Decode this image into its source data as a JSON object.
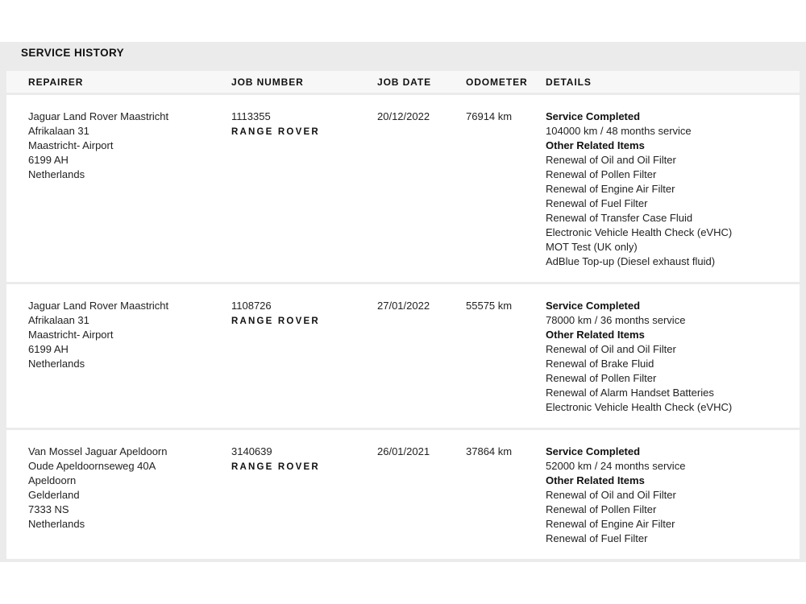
{
  "section_title": "SERVICE HISTORY",
  "columns": [
    "REPAIRER",
    "JOB NUMBER",
    "JOB DATE",
    "ODOMETER",
    "DETAILS"
  ],
  "rows": [
    {
      "repairer": [
        "Jaguar Land Rover Maastricht",
        "Afrikalaan 31",
        "Maastricht- Airport",
        "6199 AH",
        "Netherlands"
      ],
      "job_number": "1113355",
      "brand": "RANGE ROVER",
      "job_date": "20/12/2022",
      "odometer": "76914 km",
      "service_heading": "Service Completed",
      "service": "104000 km / 48 months service",
      "other_heading": "Other Related Items",
      "items": [
        "Renewal of Oil and Oil Filter",
        "Renewal of Pollen Filter",
        "Renewal of Engine Air Filter",
        "Renewal of Fuel Filter",
        "Renewal of Transfer Case Fluid",
        "Electronic Vehicle Health Check (eVHC)",
        "MOT Test (UK only)",
        "AdBlue Top-up (Diesel exhaust fluid)"
      ]
    },
    {
      "repairer": [
        "Jaguar Land Rover Maastricht",
        "Afrikalaan 31",
        "Maastricht- Airport",
        "6199 AH",
        "Netherlands"
      ],
      "job_number": "1108726",
      "brand": "RANGE ROVER",
      "job_date": "27/01/2022",
      "odometer": "55575 km",
      "service_heading": "Service Completed",
      "service": "78000 km / 36 months service",
      "other_heading": "Other Related Items",
      "items": [
        "Renewal of Oil and Oil Filter",
        "Renewal of Brake Fluid",
        "Renewal of Pollen Filter",
        "Renewal of Alarm Handset Batteries",
        "Electronic Vehicle Health Check (eVHC)"
      ]
    },
    {
      "repairer": [
        "Van Mossel Jaguar Apeldoorn",
        "Oude Apeldoornseweg 40A",
        "Apeldoorn",
        "Gelderland",
        "7333 NS",
        "Netherlands"
      ],
      "job_number": "3140639",
      "brand": "RANGE ROVER",
      "job_date": "26/01/2021",
      "odometer": "37864 km",
      "service_heading": "Service Completed",
      "service": "52000 km / 24 months service",
      "other_heading": "Other Related Items",
      "items": [
        "Renewal of Oil and Oil Filter",
        "Renewal of Pollen Filter",
        "Renewal of Engine Air Filter",
        "Renewal of Fuel Filter"
      ]
    }
  ]
}
